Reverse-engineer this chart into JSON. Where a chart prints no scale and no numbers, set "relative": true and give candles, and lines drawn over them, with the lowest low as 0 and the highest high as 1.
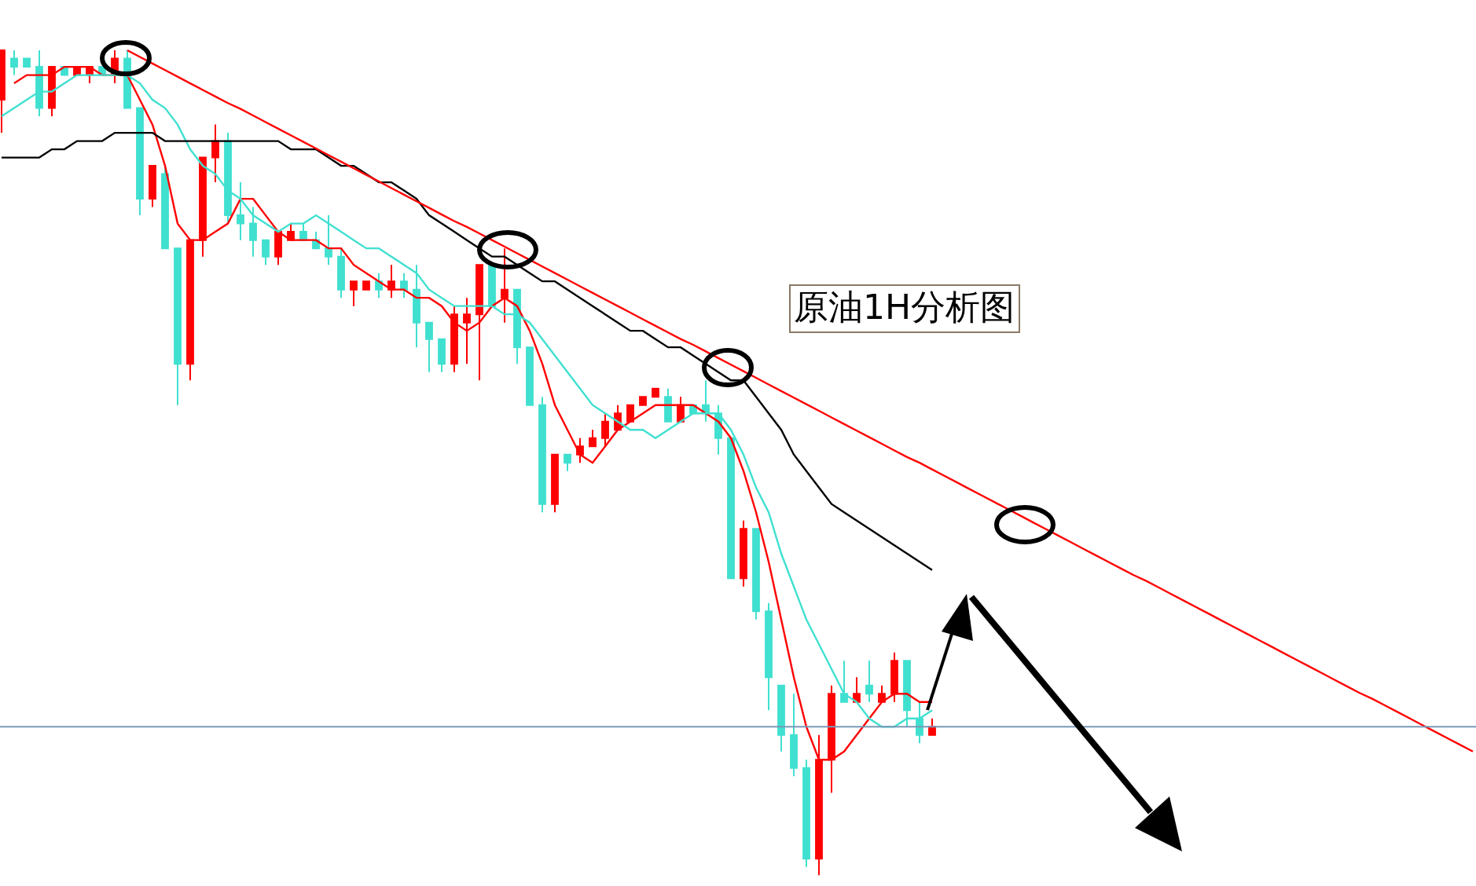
{
  "chart_data": {
    "type": "candlestick",
    "relative": true,
    "categories": [
      null,
      null,
      null,
      null,
      null,
      null,
      null,
      null,
      null,
      null,
      null,
      null,
      null,
      null,
      null,
      null,
      null,
      null,
      null,
      null,
      null,
      null,
      null,
      null,
      null,
      null,
      null,
      null,
      null,
      null,
      null,
      null,
      null,
      null,
      null,
      null,
      null,
      null,
      null,
      null,
      null,
      null,
      null,
      null,
      null,
      null,
      null,
      null,
      null,
      null,
      null,
      null,
      null,
      null,
      null,
      null,
      null,
      null,
      null,
      null,
      null,
      null,
      null,
      null,
      null,
      null,
      null,
      null,
      null,
      null,
      null,
      null,
      null,
      null,
      null,
      null,
      null,
      null,
      null,
      null,
      null,
      null,
      null,
      null,
      null,
      null,
      null,
      null,
      null,
      null,
      null,
      null,
      null,
      null,
      null,
      null,
      null,
      null,
      null,
      null,
      null,
      null,
      null,
      null,
      null,
      null,
      null,
      null,
      null,
      null,
      null,
      null,
      null,
      null,
      null,
      null,
      null,
      null
    ],
    "ohlc": [
      [
        0.94,
        1.0,
        0.9,
        1.0
      ],
      [
        0.99,
        1.0,
        0.97,
        0.98
      ],
      [
        0.99,
        0.99,
        0.98,
        0.98
      ],
      [
        0.98,
        1.0,
        0.92,
        0.93
      ],
      [
        0.93,
        0.98,
        0.92,
        0.98
      ],
      [
        0.98,
        0.98,
        0.97,
        0.97
      ],
      [
        0.97,
        0.98,
        0.97,
        0.98
      ],
      [
        0.97,
        0.98,
        0.96,
        0.98
      ],
      [
        0.98,
        0.98,
        0.97,
        0.97
      ],
      [
        0.97,
        1.0,
        0.96,
        0.99
      ],
      [
        0.99,
        1.0,
        0.93,
        0.93
      ],
      [
        0.93,
        0.93,
        0.8,
        0.82
      ],
      [
        0.82,
        0.86,
        0.81,
        0.86
      ],
      [
        0.85,
        0.86,
        0.76,
        0.76
      ],
      [
        0.76,
        0.76,
        0.57,
        0.62
      ],
      [
        0.62,
        0.77,
        0.6,
        0.77
      ],
      [
        0.77,
        0.87,
        0.75,
        0.87
      ],
      [
        0.87,
        0.91,
        0.84,
        0.89
      ],
      [
        0.89,
        0.9,
        0.79,
        0.8
      ],
      [
        0.8,
        0.84,
        0.77,
        0.79
      ],
      [
        0.79,
        0.81,
        0.75,
        0.77
      ],
      [
        0.77,
        0.77,
        0.74,
        0.75
      ],
      [
        0.75,
        0.78,
        0.74,
        0.78
      ],
      [
        0.77,
        0.79,
        0.77,
        0.78
      ],
      [
        0.78,
        0.79,
        0.77,
        0.77
      ],
      [
        0.77,
        0.78,
        0.76,
        0.76
      ],
      [
        0.76,
        0.8,
        0.74,
        0.75
      ],
      [
        0.75,
        0.76,
        0.7,
        0.71
      ],
      [
        0.71,
        0.72,
        0.69,
        0.72
      ],
      [
        0.71,
        0.72,
        0.71,
        0.72
      ],
      [
        0.72,
        0.73,
        0.7,
        0.71
      ],
      [
        0.71,
        0.74,
        0.7,
        0.72
      ],
      [
        0.72,
        0.73,
        0.7,
        0.71
      ],
      [
        0.71,
        0.74,
        0.64,
        0.67
      ],
      [
        0.67,
        0.67,
        0.61,
        0.65
      ],
      [
        0.65,
        0.65,
        0.61,
        0.62
      ],
      [
        0.62,
        0.69,
        0.61,
        0.68
      ],
      [
        0.67,
        0.7,
        0.62,
        0.68
      ],
      [
        0.68,
        0.74,
        0.6,
        0.74
      ],
      [
        0.74,
        0.74,
        0.69,
        0.69
      ],
      [
        0.7,
        0.76,
        0.67,
        0.71
      ],
      [
        0.71,
        0.71,
        0.62,
        0.64
      ],
      [
        0.64,
        0.64,
        0.57,
        0.57
      ],
      [
        0.57,
        0.58,
        0.44,
        0.45
      ],
      [
        0.45,
        0.51,
        0.44,
        0.51
      ],
      [
        0.51,
        0.51,
        0.49,
        0.5
      ],
      [
        0.51,
        0.53,
        0.5,
        0.52
      ],
      [
        0.52,
        0.54,
        0.52,
        0.53
      ],
      [
        0.53,
        0.56,
        0.52,
        0.55
      ],
      [
        0.54,
        0.57,
        0.54,
        0.56
      ],
      [
        0.55,
        0.57,
        0.55,
        0.57
      ],
      [
        0.57,
        0.58,
        0.57,
        0.58
      ],
      [
        0.58,
        0.59,
        0.58,
        0.59
      ],
      [
        0.58,
        0.59,
        0.55,
        0.55
      ],
      [
        0.55,
        0.58,
        0.55,
        0.57
      ],
      [
        0.57,
        0.57,
        0.56,
        0.56
      ],
      [
        0.57,
        0.6,
        0.55,
        0.56
      ],
      [
        0.56,
        0.57,
        0.51,
        0.53
      ],
      [
        0.53,
        0.53,
        0.36,
        0.36
      ],
      [
        0.36,
        0.43,
        0.35,
        0.42
      ],
      [
        0.42,
        0.42,
        0.31,
        0.32
      ],
      [
        0.32,
        0.33,
        0.2,
        0.24
      ],
      [
        0.23,
        0.23,
        0.15,
        0.17
      ],
      [
        0.17,
        0.22,
        0.12,
        0.13
      ],
      [
        0.13,
        0.14,
        0.01,
        0.02
      ],
      [
        0.02,
        0.17,
        0,
        0.14
      ],
      [
        0.14,
        0.23,
        0.1,
        0.22
      ],
      [
        0.22,
        0.26,
        0.21,
        0.21
      ],
      [
        0.21,
        0.24,
        0.21,
        0.22
      ],
      [
        0.23,
        0.26,
        0.21,
        0.22
      ],
      [
        0.21,
        0.23,
        0.21,
        0.22
      ],
      [
        0.22,
        0.27,
        0.21,
        0.26
      ],
      [
        0.26,
        0.26,
        0.18,
        0.2
      ],
      [
        0.19,
        0.21,
        0.16,
        0.17
      ],
      [
        0.17,
        0.19,
        0.17,
        0.18
      ],
      null,
      null,
      null,
      null,
      null,
      null,
      null,
      null,
      null,
      null,
      null,
      null,
      null,
      null,
      null,
      null,
      null,
      null,
      null,
      null,
      null,
      null,
      null,
      null,
      null,
      null,
      null,
      null,
      null,
      null,
      null,
      null,
      null,
      null,
      null,
      null,
      null,
      null,
      null,
      null,
      null,
      null,
      null
    ],
    "colors": [
      "#ff0000",
      "#40e0d0",
      "#40e0d0",
      "#40e0d0",
      "#ff0000",
      "#40e0d0",
      "#ff0000",
      "#ff0000",
      "#40e0d0",
      "#ff0000",
      "#40e0d0",
      "#40e0d0",
      "#ff0000",
      "#40e0d0",
      "#40e0d0",
      "#ff0000",
      "#ff0000",
      "#ff0000",
      "#40e0d0",
      "#40e0d0",
      "#40e0d0",
      "#40e0d0",
      "#ff0000",
      "#ff0000",
      "#40e0d0",
      "#40e0d0",
      "#40e0d0",
      "#40e0d0",
      "#ff0000",
      "#ff0000",
      "#40e0d0",
      "#ff0000",
      "#40e0d0",
      "#40e0d0",
      "#40e0d0",
      "#40e0d0",
      "#ff0000",
      "#ff0000",
      "#ff0000",
      "#40e0d0",
      "#ff0000",
      "#40e0d0",
      "#40e0d0",
      "#40e0d0",
      "#ff0000",
      "#40e0d0",
      "#ff0000",
      "#ff0000",
      "#ff0000",
      "#ff0000",
      "#ff0000",
      "#ff0000",
      "#ff0000",
      "#40e0d0",
      "#ff0000",
      "#40e0d0",
      "#40e0d0",
      "#40e0d0",
      "#40e0d0",
      "#ff0000",
      "#40e0d0",
      "#40e0d0",
      "#40e0d0",
      "#40e0d0",
      "#40e0d0",
      "#ff0000",
      "#ff0000",
      "#40e0d0",
      "#ff0000",
      "#40e0d0",
      "#ff0000",
      "#ff0000",
      "#40e0d0",
      "#40e0d0",
      "#ff0000",
      null,
      null,
      null,
      null,
      null,
      null,
      null,
      null,
      null,
      null,
      null,
      null,
      null,
      null,
      null,
      null,
      null,
      null,
      null,
      null,
      null,
      null,
      null,
      null,
      null,
      null,
      null,
      null,
      null,
      null,
      null,
      null,
      null,
      null,
      null,
      null,
      null,
      null,
      null,
      null,
      null,
      null,
      null
    ],
    "series": [
      {
        "type": "line",
        "color": "#ff0000",
        "values": [
          null,
          0.96,
          0.97,
          0.97,
          0.97,
          0.98,
          0.98,
          0.98,
          0.97,
          0.97,
          0.97,
          0.94,
          0.91,
          0.86,
          0.79,
          0.77,
          0.77,
          0.78,
          0.79,
          0.82,
          0.82,
          0.8,
          0.78,
          0.77,
          0.77,
          0.77,
          0.76,
          0.76,
          0.74,
          0.73,
          0.72,
          0.71,
          0.71,
          0.7,
          0.7,
          0.69,
          0.67,
          0.66,
          0.67,
          0.69,
          0.7,
          0.69,
          0.66,
          0.62,
          0.57,
          0.54,
          0.51,
          0.5,
          0.52,
          0.54,
          0.55,
          0.56,
          0.57,
          0.57,
          0.57,
          0.57,
          0.56,
          0.55,
          0.53,
          0.49,
          0.44,
          0.38,
          0.31,
          0.24,
          0.18,
          0.14,
          0.14,
          0.15,
          0.17,
          0.19,
          0.21,
          0.22,
          0.22,
          0.21,
          0.21,
          null,
          null,
          null,
          null,
          null,
          null,
          null,
          null,
          null,
          null,
          null,
          null,
          null,
          null,
          null,
          null,
          null,
          null,
          null,
          null,
          null,
          null,
          null,
          null,
          null,
          null,
          null,
          null,
          null,
          null,
          null,
          null,
          null,
          null,
          null,
          null,
          null,
          null,
          null,
          null,
          null,
          null,
          null
        ]
      },
      {
        "type": "line",
        "color": "#40e0d0",
        "values": [
          0.92,
          0.93,
          0.94,
          0.95,
          0.95,
          0.96,
          0.97,
          0.97,
          0.97,
          0.97,
          0.97,
          0.96,
          0.94,
          0.93,
          0.91,
          0.88,
          0.86,
          0.85,
          0.83,
          0.82,
          0.8,
          0.79,
          0.78,
          0.79,
          0.79,
          0.8,
          0.79,
          0.78,
          0.77,
          0.76,
          0.76,
          0.75,
          0.74,
          0.73,
          0.71,
          0.7,
          0.69,
          0.69,
          0.69,
          0.69,
          0.68,
          0.68,
          0.67,
          0.65,
          0.63,
          0.61,
          0.59,
          0.57,
          0.56,
          0.55,
          0.54,
          0.54,
          0.53,
          0.54,
          0.55,
          0.56,
          0.56,
          0.56,
          0.54,
          0.51,
          0.47,
          0.44,
          0.39,
          0.35,
          0.31,
          0.28,
          0.25,
          0.22,
          0.21,
          0.19,
          0.18,
          0.18,
          0.19,
          0.19,
          0.2,
          null,
          null,
          null,
          null,
          null,
          null,
          null,
          null,
          null,
          null,
          null,
          null,
          null,
          null,
          null,
          null,
          null,
          null,
          null,
          null,
          null,
          null,
          null,
          null,
          null,
          null,
          null,
          null,
          null,
          null,
          null,
          null,
          null,
          null,
          null,
          null,
          null,
          null,
          null,
          null,
          null,
          null,
          null
        ]
      },
      {
        "type": "line",
        "color": "#000000",
        "values": [
          0.87,
          0.87,
          0.87,
          0.87,
          0.88,
          0.88,
          0.89,
          0.89,
          0.89,
          0.9,
          0.9,
          0.9,
          0.9,
          0.89,
          0.89,
          0.89,
          0.89,
          0.89,
          0.89,
          0.89,
          0.89,
          0.89,
          0.89,
          0.88,
          0.88,
          0.88,
          0.87,
          0.86,
          0.86,
          0.85,
          0.84,
          0.84,
          0.83,
          0.82,
          0.8,
          0.79,
          0.78,
          0.77,
          0.76,
          0.75,
          0.75,
          0.74,
          0.73,
          0.72,
          0.72,
          0.71,
          0.7,
          0.69,
          0.68,
          0.67,
          0.66,
          0.66,
          0.65,
          0.64,
          0.64,
          0.63,
          0.62,
          0.61,
          0.6,
          0.6,
          0.58,
          0.56,
          0.54,
          0.51,
          0.49,
          0.47,
          0.45,
          0.44,
          0.43,
          0.42,
          0.41,
          0.4,
          0.39,
          0.38,
          0.37,
          null,
          null,
          null,
          null,
          null,
          null,
          null,
          null,
          null,
          null,
          null,
          null,
          null,
          null,
          null,
          null,
          null,
          null,
          null,
          null,
          null,
          null,
          null,
          null,
          null,
          null,
          null,
          null,
          null,
          null,
          null,
          null,
          null,
          null,
          null,
          null,
          null,
          null,
          null,
          null,
          null,
          null,
          null
        ]
      },
      {
        "type": "line",
        "color": "#ff0000",
        "values": [
          null,
          null,
          null,
          null,
          null,
          null,
          null,
          null,
          null,
          null,
          1.0,
          0.992,
          0.984,
          0.976,
          0.968,
          0.96,
          0.952,
          0.944,
          0.936,
          0.929,
          0.921,
          0.913,
          0.905,
          0.897,
          0.889,
          0.881,
          0.873,
          0.865,
          0.857,
          0.849,
          0.841,
          0.833,
          0.825,
          0.817,
          0.809,
          0.801,
          0.793,
          0.786,
          0.778,
          0.77,
          0.762,
          0.754,
          0.746,
          0.738,
          0.73,
          0.722,
          0.714,
          0.706,
          0.698,
          0.69,
          0.682,
          0.674,
          0.666,
          0.658,
          0.65,
          0.643,
          0.635,
          0.627,
          0.619,
          0.611,
          0.603,
          0.595,
          0.587,
          0.579,
          0.571,
          0.563,
          0.555,
          0.547,
          0.539,
          0.531,
          0.523,
          0.515,
          0.507,
          0.5,
          0.492,
          0.484,
          0.476,
          0.468,
          0.46,
          0.452,
          0.444,
          0.436,
          0.428,
          0.42,
          0.412,
          0.404,
          0.396,
          0.388,
          0.38,
          0.372,
          0.364,
          0.357,
          0.349,
          0.341,
          0.333,
          0.325,
          0.317,
          0.309,
          0.301,
          0.293,
          0.285,
          0.277,
          0.269,
          0.261,
          0.253,
          0.245,
          0.237,
          0.229,
          0.221,
          0.214,
          0.206,
          0.198,
          0.19,
          0.182,
          0.174,
          0.166,
          0.158,
          0.15
        ]
      }
    ],
    "ref_lines": [
      {
        "axis": "y",
        "value": 0.18,
        "color": "#7a99b8"
      }
    ],
    "annotations": [
      "原油1H分析图"
    ]
  }
}
